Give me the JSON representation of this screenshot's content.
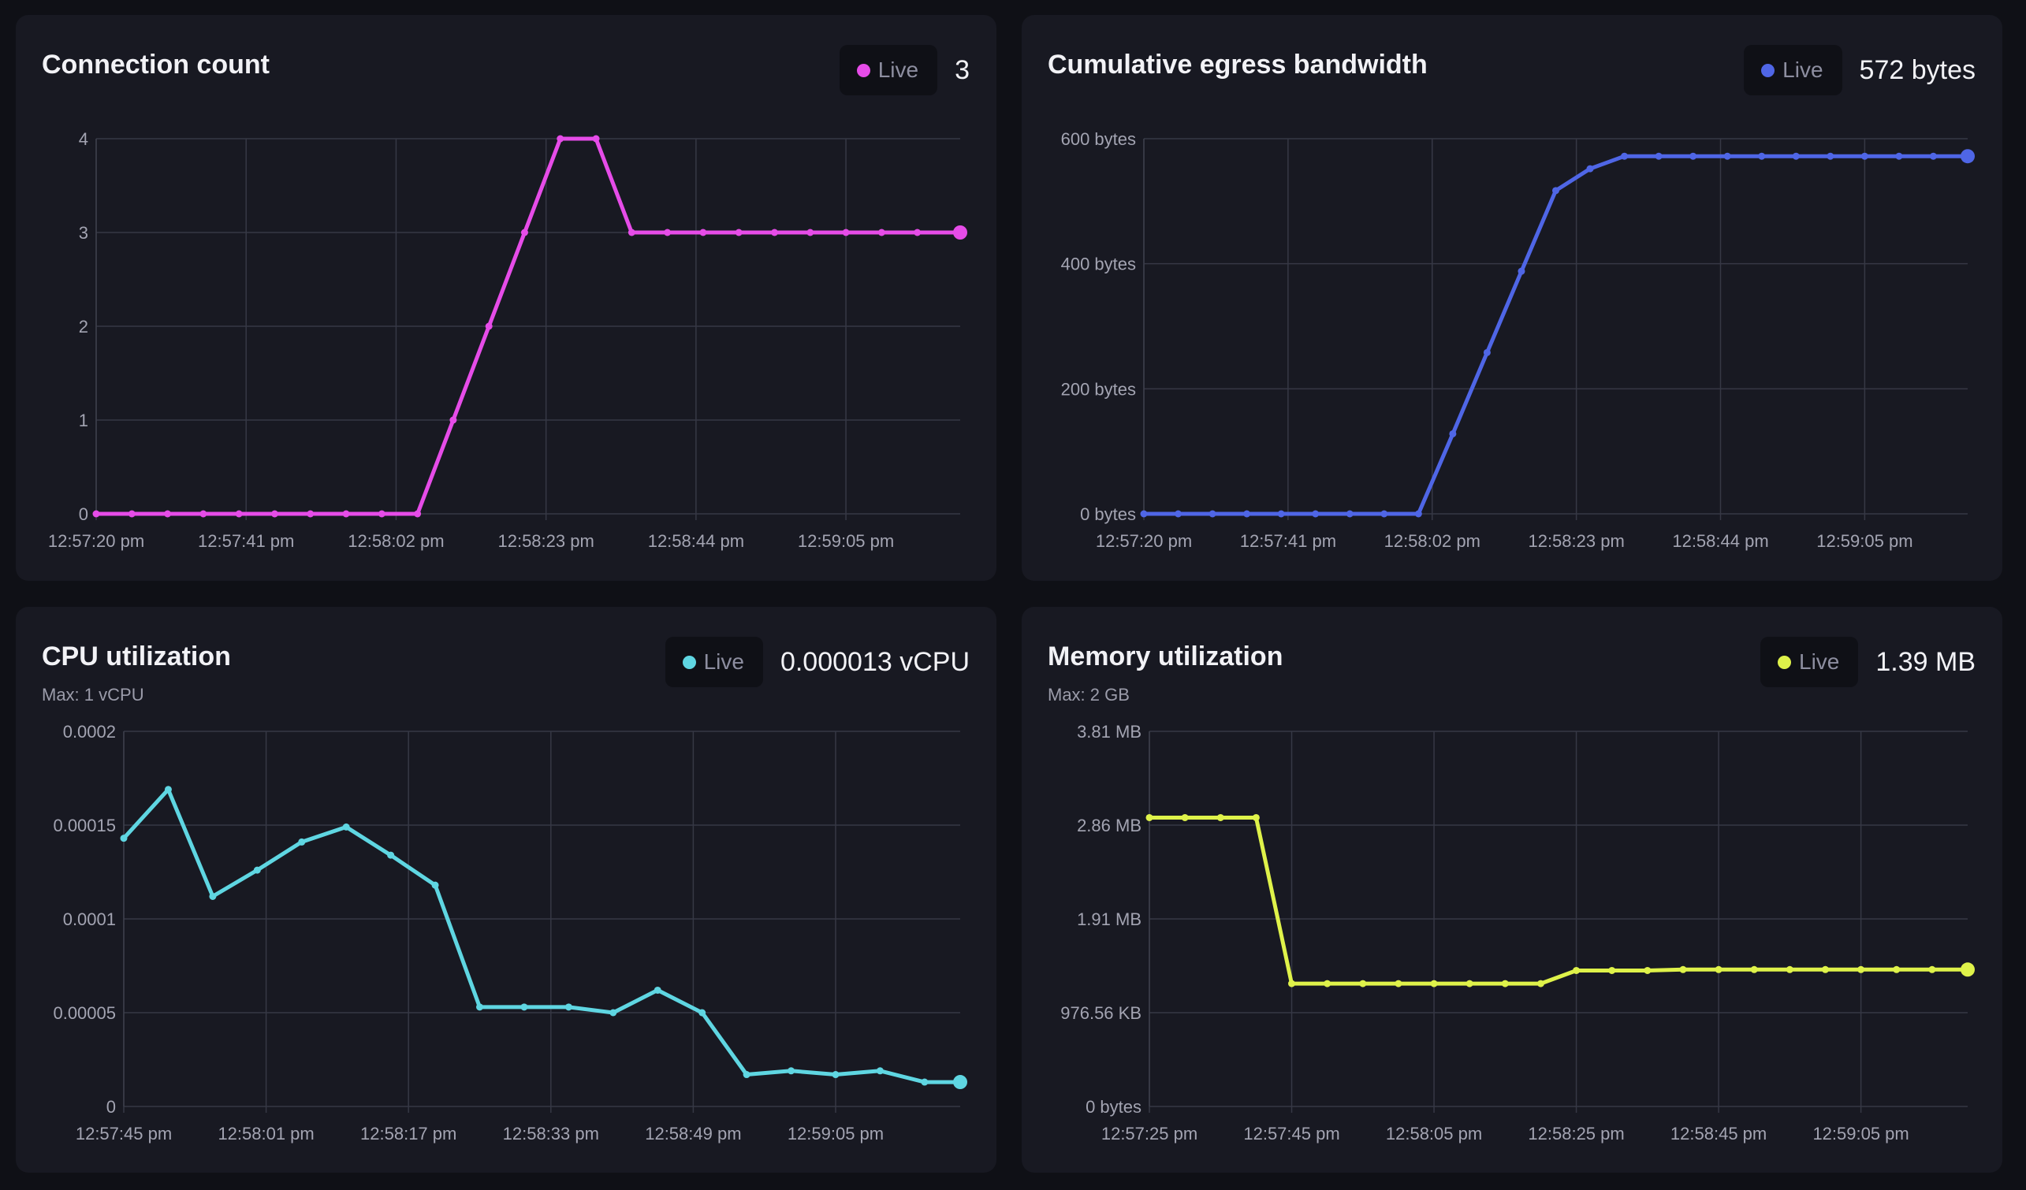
{
  "panels": [
    {
      "title": "Connection count",
      "subtitle": "",
      "live_label": "Live",
      "current_value": "3",
      "color": "#e64ce8"
    },
    {
      "title": "Cumulative egress bandwidth",
      "subtitle": "",
      "live_label": "Live",
      "current_value": "572 bytes",
      "color": "#4f66e6"
    },
    {
      "title": "CPU utilization",
      "subtitle": "Max: 1 vCPU",
      "live_label": "Live",
      "current_value": "0.000013 vCPU",
      "color": "#5fd6e2"
    },
    {
      "title": "Memory utilization",
      "subtitle": "Max: 2 GB",
      "live_label": "Live",
      "current_value": "1.39 MB",
      "color": "#dff24a"
    }
  ],
  "chart_data": [
    {
      "type": "line",
      "title": "Connection count",
      "xlabel": "",
      "ylabel": "",
      "x_ticks": [
        "12:57:20 pm",
        "12:57:41 pm",
        "12:58:02 pm",
        "12:58:23 pm",
        "12:58:44 pm",
        "12:59:05 pm"
      ],
      "x_tick_values": [
        0,
        21,
        42,
        63,
        84,
        105
      ],
      "xlim": [
        0,
        121
      ],
      "y_ticks": [
        "0",
        "1",
        "2",
        "3",
        "4"
      ],
      "y_tick_values": [
        0,
        1,
        2,
        3,
        4
      ],
      "ylim": [
        0,
        4
      ],
      "grid": true,
      "series": [
        {
          "x": [
            0,
            5,
            10,
            15,
            20,
            25,
            30,
            35,
            40,
            45,
            50,
            55,
            60,
            65,
            70,
            75,
            80,
            85,
            90,
            95,
            100,
            105,
            110,
            115,
            121
          ],
          "y": [
            0,
            0,
            0,
            0,
            0,
            0,
            0,
            0,
            0,
            0,
            1,
            2,
            3,
            4,
            4,
            3,
            3,
            3,
            3,
            3,
            3,
            3,
            3,
            3,
            3
          ]
        }
      ]
    },
    {
      "type": "line",
      "title": "Cumulative egress bandwidth",
      "xlabel": "",
      "ylabel": "",
      "x_ticks": [
        "12:57:20 pm",
        "12:57:41 pm",
        "12:58:02 pm",
        "12:58:23 pm",
        "12:58:44 pm",
        "12:59:05 pm"
      ],
      "x_tick_values": [
        0,
        21,
        42,
        63,
        84,
        105
      ],
      "xlim": [
        0,
        120
      ],
      "y_ticks": [
        "0 bytes",
        "200 bytes",
        "400 bytes",
        "600 bytes"
      ],
      "y_tick_values": [
        0,
        200,
        400,
        600
      ],
      "ylim": [
        0,
        600
      ],
      "grid": true,
      "series": [
        {
          "x": [
            0,
            5,
            10,
            15,
            20,
            25,
            30,
            35,
            40,
            45,
            50,
            55,
            60,
            65,
            70,
            75,
            80,
            85,
            90,
            95,
            100,
            105,
            110,
            115,
            120
          ],
          "y": [
            0,
            0,
            0,
            0,
            0,
            0,
            0,
            0,
            0,
            128,
            258,
            388,
            517,
            552,
            572,
            572,
            572,
            572,
            572,
            572,
            572,
            572,
            572,
            572,
            572
          ]
        }
      ]
    },
    {
      "type": "line",
      "title": "CPU utilization",
      "xlabel": "",
      "ylabel": "",
      "x_ticks": [
        "12:57:45 pm",
        "12:58:01 pm",
        "12:58:17 pm",
        "12:58:33 pm",
        "12:58:49 pm",
        "12:59:05 pm"
      ],
      "x_tick_values": [
        0,
        16,
        32,
        48,
        64,
        80
      ],
      "xlim": [
        0,
        94
      ],
      "y_ticks": [
        "0",
        "0.00005",
        "0.0001",
        "0.00015",
        "0.0002"
      ],
      "y_tick_values": [
        0,
        5e-05,
        0.0001,
        0.00015,
        0.0002
      ],
      "ylim": [
        0,
        0.0002
      ],
      "grid": true,
      "series": [
        {
          "x": [
            0,
            5,
            10,
            15,
            20,
            25,
            30,
            35,
            40,
            45,
            50,
            55,
            60,
            65,
            70,
            75,
            80,
            85,
            90,
            94
          ],
          "y": [
            0.000143,
            0.000169,
            0.000112,
            0.000126,
            0.000141,
            0.000149,
            0.000134,
            0.000118,
            5.3e-05,
            5.3e-05,
            5.3e-05,
            5e-05,
            6.2e-05,
            5e-05,
            1.7e-05,
            1.9e-05,
            1.7e-05,
            1.9e-05,
            1.3e-05,
            1.3e-05
          ]
        }
      ]
    },
    {
      "type": "line",
      "title": "Memory utilization",
      "xlabel": "",
      "ylabel": "",
      "x_ticks": [
        "12:57:25 pm",
        "12:57:45 pm",
        "12:58:05 pm",
        "12:58:25 pm",
        "12:58:45 pm",
        "12:59:05 pm"
      ],
      "x_tick_values": [
        0,
        20,
        40,
        60,
        80,
        100
      ],
      "xlim": [
        0,
        115
      ],
      "y_ticks": [
        "0 bytes",
        "976.56 KB",
        "1.91 MB",
        "2.86 MB",
        "3.81 MB"
      ],
      "y_tick_values": [
        0,
        1,
        2,
        3,
        4
      ],
      "ylim": [
        0,
        4
      ],
      "grid": true,
      "series": [
        {
          "x": [
            0,
            5,
            10,
            15,
            20,
            25,
            30,
            35,
            40,
            45,
            50,
            55,
            60,
            65,
            70,
            75,
            80,
            85,
            90,
            95,
            100,
            105,
            110,
            115
          ],
          "y": [
            3.08,
            3.08,
            3.08,
            3.08,
            1.31,
            1.31,
            1.31,
            1.31,
            1.31,
            1.31,
            1.31,
            1.31,
            1.45,
            1.45,
            1.45,
            1.46,
            1.46,
            1.46,
            1.46,
            1.46,
            1.46,
            1.46,
            1.46,
            1.46
          ]
        }
      ]
    }
  ]
}
